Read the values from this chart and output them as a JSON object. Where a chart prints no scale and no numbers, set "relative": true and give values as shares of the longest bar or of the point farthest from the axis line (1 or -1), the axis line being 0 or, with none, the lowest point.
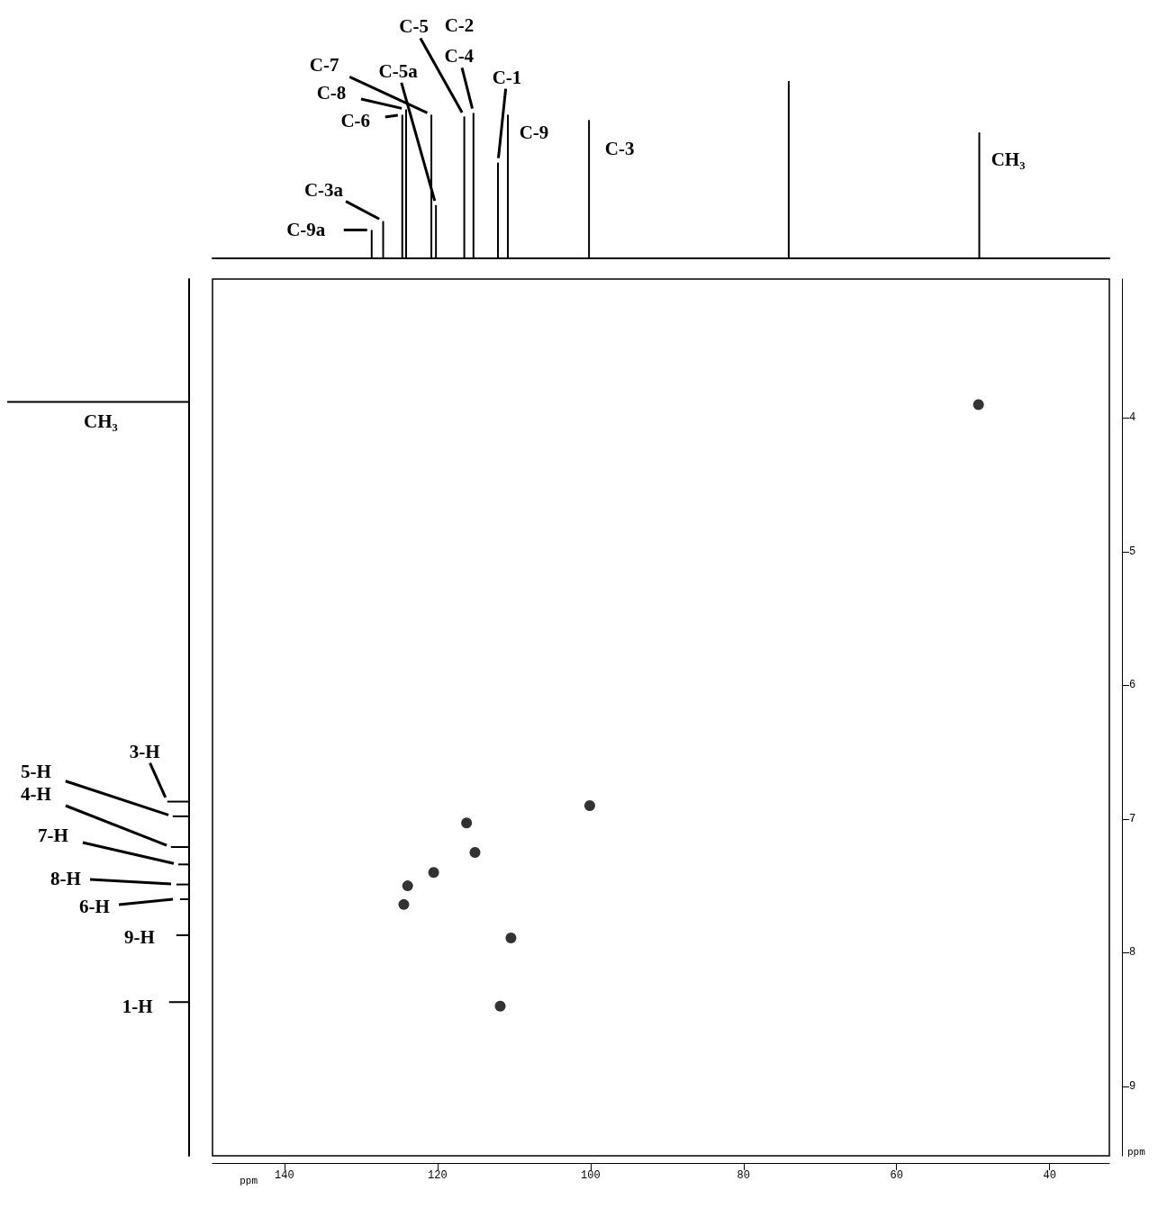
{
  "chart_data": [
    {
      "type": "bar",
      "relative": true,
      "x": [
        128.6,
        127.1,
        124.6,
        124.1,
        120.8,
        120.2,
        116.5,
        115.3,
        112.1,
        110.8,
        100.2,
        74.1,
        49.2
      ],
      "values": [
        0.16,
        0.21,
        0.81,
        0.84,
        0.81,
        0.3,
        0.8,
        0.82,
        0.54,
        0.81,
        0.78,
        1,
        0.71
      ],
      "color": "#000000",
      "xlim": [
        149.4,
        32.2
      ],
      "tick_labels": false,
      "annotations": [
        {
          "text": "C-9a",
          "x": 128.6,
          "y": 0.16
        },
        {
          "text": "C-3a",
          "x": 127.1,
          "y": 0.21
        },
        {
          "text": "C-6",
          "x": 124.6,
          "y": 0.81
        },
        {
          "text": "C-8",
          "x": 124.1,
          "y": 0.84
        },
        {
          "text": "C-7",
          "x": 120.8,
          "y": 0.81
        },
        {
          "text": "C-5a",
          "x": 120.2,
          "y": 0.3
        },
        {
          "text": "C-5",
          "x": 116.5,
          "y": 0.8
        },
        "C-2",
        {
          "text": "C-4",
          "x": 115.3,
          "y": 0.82
        },
        {
          "text": "C-1",
          "x": 112.1,
          "y": 0.54
        },
        {
          "text": "C-9",
          "x": 110.8,
          "y": 0.81
        },
        {
          "text": "C-3",
          "x": 100.2,
          "y": 0.78
        },
        {
          "text": "CH₃",
          "x": 49.2,
          "y": 0.71
        }
      ]
    },
    {
      "type": "bar",
      "orientation": "horizontal",
      "relative": true,
      "x": [
        3.88,
        6.87,
        6.98,
        7.21,
        7.34,
        7.49,
        7.6,
        7.87,
        8.37
      ],
      "values": [
        1,
        0.12,
        0.09,
        0.1,
        0.06,
        0.07,
        0.05,
        0.07,
        0.11
      ],
      "color": "#000000",
      "ylim": [
        9.52,
        2.96
      ],
      "tick_labels": false,
      "annotations": [
        "CH₃",
        {
          "text": "3-H",
          "x": 0.12,
          "y": 6.87
        },
        {
          "text": "5-H",
          "x": 0.09,
          "y": 6.98
        },
        {
          "text": "4-H",
          "x": 0.1,
          "y": 7.21
        },
        {
          "text": "7-H",
          "x": 0.06,
          "y": 7.34
        },
        "8-H",
        "6-H",
        {
          "text": "9-H",
          "x": 0.07,
          "y": 7.87
        },
        {
          "text": "1-H",
          "x": 0.11,
          "y": 8.37
        }
      ]
    },
    {
      "type": "scatter",
      "x": [
        100.1,
        116.2,
        115.1,
        120.5,
        123.9,
        124.4,
        110.4,
        111.8,
        49.3
      ],
      "values": [
        6.9,
        7.03,
        7.25,
        7.4,
        7.5,
        7.64,
        7.89,
        8.4,
        3.9
      ],
      "color": "#000000",
      "marker": "circle",
      "xlim": [
        149.4,
        32.2
      ],
      "ylim": [
        9.52,
        2.96
      ],
      "xticks": [
        140,
        120,
        100,
        80,
        60,
        40
      ],
      "yticks": [
        4,
        5,
        6,
        7,
        8,
        9
      ],
      "xlabel": "ppm",
      "ylabel": "ppm"
    }
  ]
}
